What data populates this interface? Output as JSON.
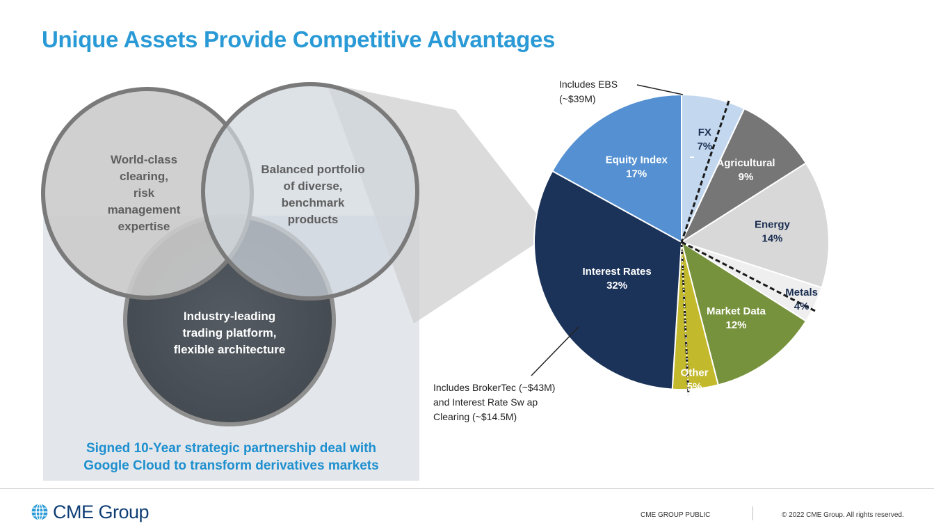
{
  "title": "Unique Assets Provide Competitive Advantages",
  "venn": {
    "clearing": [
      "World-class",
      "clearing,",
      "risk",
      "management",
      "expertise"
    ],
    "portfolio": [
      "Balanced portfolio",
      "of diverse,",
      "benchmark",
      "products"
    ],
    "platform": [
      "Industry-leading",
      "trading platform,",
      "flexible architecture"
    ]
  },
  "callout": [
    "Signed 10-Year strategic partnership deal with",
    "Google Cloud to transform derivatives markets"
  ],
  "chart_data": {
    "type": "pie",
    "start": "12 o'clock, clockwise",
    "slices": [
      {
        "label": "FX",
        "value": 7,
        "pct": "7%",
        "color": "#c3d8ef",
        "text_color": "#1b2f52"
      },
      {
        "label": "Agricultural",
        "value": 9,
        "pct": "9%",
        "color": "#767676",
        "text_color": "#ffffff"
      },
      {
        "label": "Energy",
        "value": 14,
        "pct": "14%",
        "color": "#d8d8d8",
        "text_color": "#1b2f52"
      },
      {
        "label": "Metals",
        "value": 4,
        "pct": "4%",
        "color": "#efefef",
        "text_color": "#1b2f52"
      },
      {
        "label": "Market Data",
        "value": 12,
        "pct": "12%",
        "color": "#77923c",
        "text_color": "#ffffff"
      },
      {
        "label": "Other",
        "value": 5,
        "pct": "5%",
        "color": "#c3b92c",
        "text_color": "#ffffff"
      },
      {
        "label": "Interest Rates",
        "value": 32,
        "pct": "32%",
        "color": "#1b3259",
        "text_color": "#ffffff"
      },
      {
        "label": "Equity Index",
        "value": 17,
        "pct": "17%",
        "color": "#5591d2",
        "text_color": "#ffffff"
      }
    ],
    "annotations": [
      {
        "lines": [
          "Includes  EBS",
          "(~$39M)"
        ],
        "slice": "FX"
      },
      {
        "lines": [
          "Includes  BrokerTec  (~$43M)",
          "and  Interest Rate  Sw ap",
          "Clearing  (~$14.5M)"
        ],
        "slice": "Interest Rates"
      }
    ]
  },
  "footer": {
    "logo_text": "CME Group",
    "classification": "CME GROUP  PUBLIC",
    "copyright": "© 2022 CME Group. All rights reserved."
  }
}
